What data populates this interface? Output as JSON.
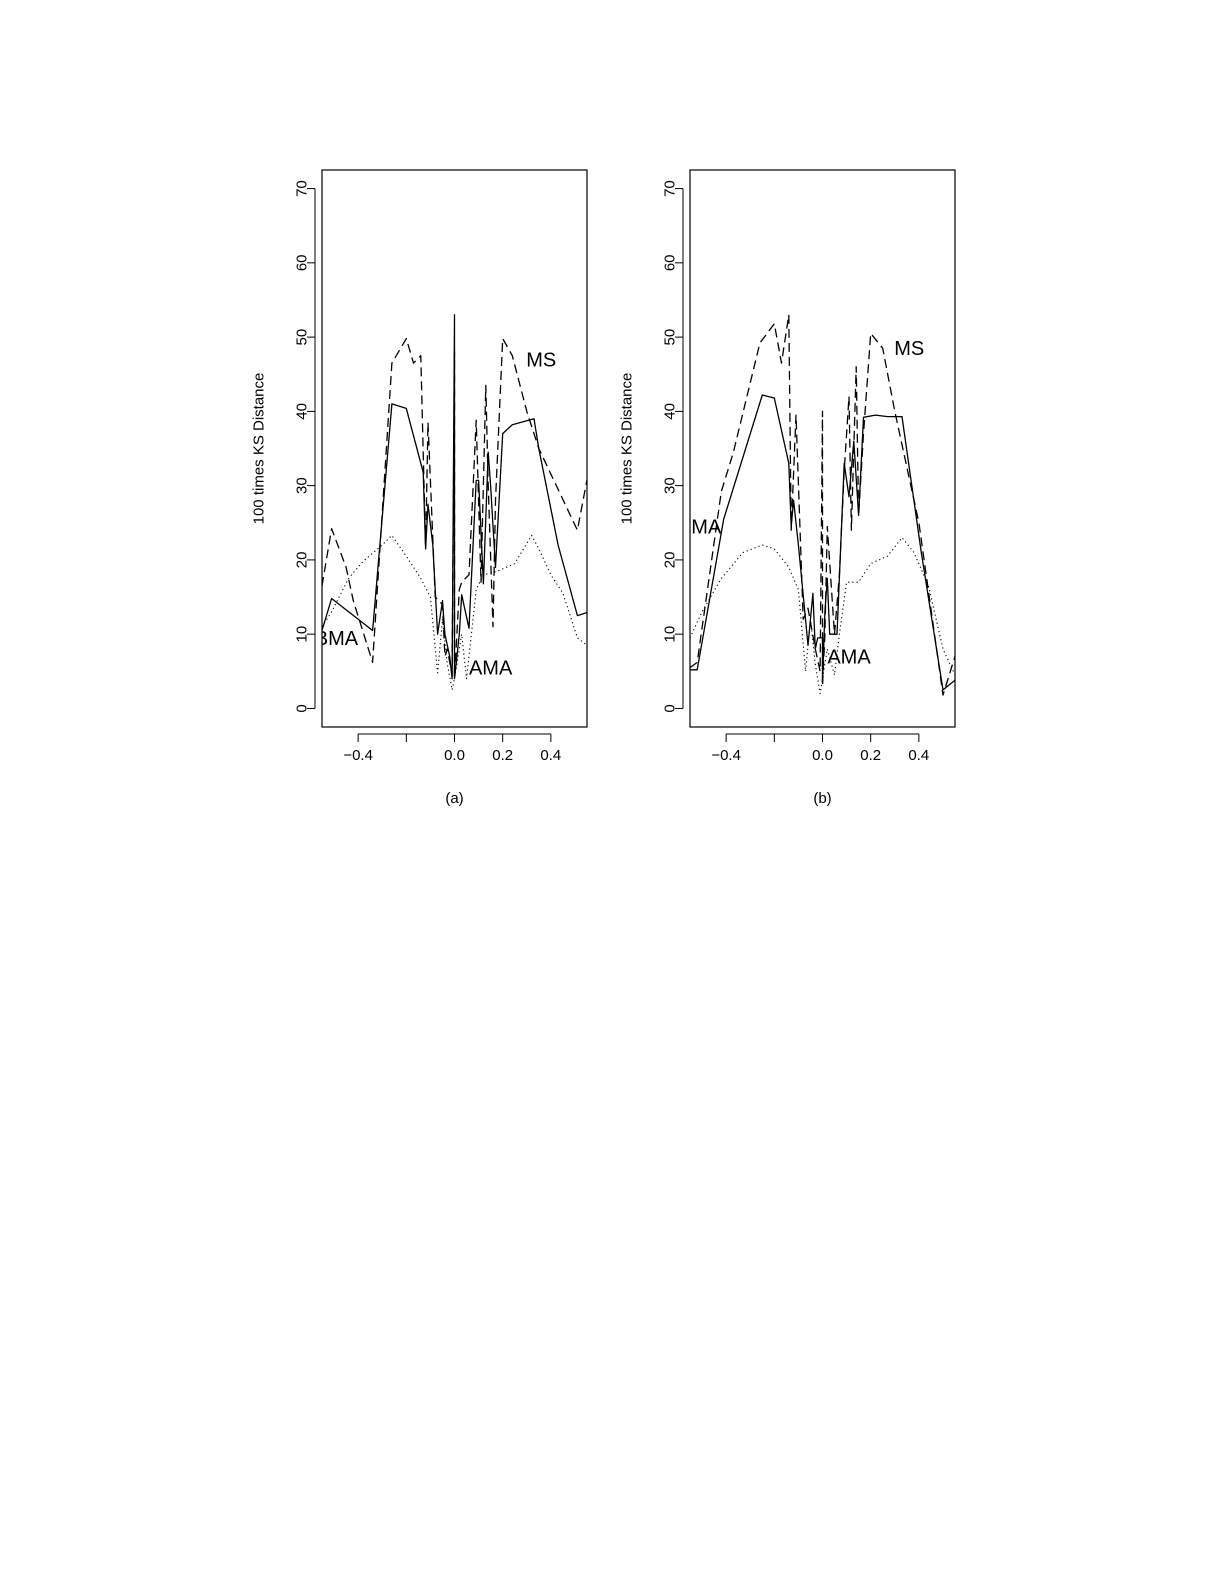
{
  "chart_data": [
    {
      "type": "line",
      "caption": "(a)",
      "ylabel": "100 times KS Distance",
      "xlabel": "",
      "xlim": [
        -0.55,
        0.55
      ],
      "ylim": [
        -2.5,
        72.5
      ],
      "x_ticks": [
        {
          "value": -0.4,
          "label": "−0.4"
        },
        {
          "value": -0.2,
          "label": ""
        },
        {
          "value": 0.0,
          "label": "0.0"
        },
        {
          "value": 0.2,
          "label": "0.2"
        },
        {
          "value": 0.4,
          "label": "0.4"
        }
      ],
      "y_ticks": [
        {
          "value": 0,
          "label": "0"
        },
        {
          "value": 10,
          "label": "10"
        },
        {
          "value": 20,
          "label": "20"
        },
        {
          "value": 30,
          "label": "30"
        },
        {
          "value": 40,
          "label": "40"
        },
        {
          "value": 50,
          "label": "50"
        },
        {
          "value": 60,
          "label": "60"
        },
        {
          "value": 70,
          "label": "70"
        }
      ],
      "annotations": [
        {
          "text": "MS",
          "x": 0.36,
          "y": 47
        },
        {
          "text": "BMA",
          "x": -0.49,
          "y": 9.5
        },
        {
          "text": "AMA",
          "x": 0.15,
          "y": 5.5
        }
      ],
      "series": [
        {
          "style": "solid",
          "points": [
            [
              -0.55,
              10.5
            ],
            [
              -0.51,
              14.8
            ],
            [
              -0.34,
              10.5
            ],
            [
              -0.26,
              41.0
            ],
            [
              -0.2,
              40.4
            ],
            [
              -0.13,
              31.8
            ],
            [
              -0.12,
              21.5
            ],
            [
              -0.11,
              27.5
            ],
            [
              -0.09,
              22
            ],
            [
              -0.07,
              10
            ],
            [
              -0.05,
              14.5
            ],
            [
              -0.04,
              10
            ],
            [
              -0.02,
              7
            ],
            [
              -0.01,
              4
            ],
            [
              0.0,
              53
            ],
            [
              0.0,
              4
            ],
            [
              0.02,
              10
            ],
            [
              0.03,
              15.3
            ],
            [
              0.06,
              10.8
            ],
            [
              0.09,
              30.7
            ],
            [
              0.1,
              30.7
            ],
            [
              0.12,
              16.8
            ],
            [
              0.14,
              34.5
            ],
            [
              0.15,
              30
            ],
            [
              0.17,
              19
            ],
            [
              0.2,
              37
            ],
            [
              0.24,
              38.2
            ],
            [
              0.33,
              39
            ],
            [
              0.35,
              35
            ],
            [
              0.43,
              22
            ],
            [
              0.51,
              12.5
            ],
            [
              0.55,
              12.9
            ]
          ]
        },
        {
          "style": "dashed",
          "points": [
            [
              -0.55,
              16.5
            ],
            [
              -0.51,
              24.2
            ],
            [
              -0.45,
              19
            ],
            [
              -0.42,
              14.5
            ],
            [
              -0.34,
              6.2
            ],
            [
              -0.26,
              46.5
            ],
            [
              -0.2,
              49.8
            ],
            [
              -0.17,
              46.5
            ],
            [
              -0.14,
              47.5
            ],
            [
              -0.12,
              21.5
            ],
            [
              -0.11,
              38.5
            ],
            [
              -0.08,
              15
            ],
            [
              -0.05,
              14
            ],
            [
              -0.04,
              7
            ],
            [
              -0.03,
              8
            ],
            [
              -0.01,
              4.5
            ],
            [
              0.0,
              48
            ],
            [
              0.0,
              4
            ],
            [
              0.02,
              16
            ],
            [
              0.03,
              17
            ],
            [
              0.06,
              18
            ],
            [
              0.09,
              38.8
            ],
            [
              0.11,
              17
            ],
            [
              0.13,
              43.5
            ],
            [
              0.14,
              30
            ],
            [
              0.16,
              11
            ],
            [
              0.17,
              28
            ],
            [
              0.2,
              49.8
            ],
            [
              0.24,
              47.5
            ],
            [
              0.3,
              40
            ],
            [
              0.35,
              35
            ],
            [
              0.51,
              24
            ],
            [
              0.55,
              30.8
            ]
          ]
        },
        {
          "style": "dotted",
          "points": [
            [
              -0.55,
              11
            ],
            [
              -0.51,
              13
            ],
            [
              -0.44,
              17.5
            ],
            [
              -0.38,
              19.8
            ],
            [
              -0.3,
              22
            ],
            [
              -0.26,
              23.3
            ],
            [
              -0.2,
              20.5
            ],
            [
              -0.14,
              17.5
            ],
            [
              -0.1,
              15
            ],
            [
              -0.07,
              4.8
            ],
            [
              -0.05,
              12
            ],
            [
              -0.03,
              6
            ],
            [
              -0.01,
              2.5
            ],
            [
              0.0,
              4
            ],
            [
              0.03,
              10
            ],
            [
              0.05,
              4
            ],
            [
              0.07,
              10
            ],
            [
              0.09,
              16
            ],
            [
              0.12,
              18
            ],
            [
              0.18,
              18.5
            ],
            [
              0.25,
              19.5
            ],
            [
              0.32,
              23.3
            ],
            [
              0.35,
              21.5
            ],
            [
              0.4,
              18
            ],
            [
              0.45,
              15.5
            ],
            [
              0.51,
              9.5
            ],
            [
              0.55,
              8.5
            ]
          ]
        }
      ]
    },
    {
      "type": "line",
      "caption": "(b)",
      "ylabel": "100 times KS Distance",
      "xlabel": "",
      "xlim": [
        -0.55,
        0.55
      ],
      "ylim": [
        -2.5,
        72.5
      ],
      "x_ticks": [
        {
          "value": -0.4,
          "label": "−0.4"
        },
        {
          "value": -0.2,
          "label": ""
        },
        {
          "value": 0.0,
          "label": "0.0"
        },
        {
          "value": 0.2,
          "label": "0.2"
        },
        {
          "value": 0.4,
          "label": "0.4"
        }
      ],
      "y_ticks": [
        {
          "value": 0,
          "label": "0"
        },
        {
          "value": 10,
          "label": "10"
        },
        {
          "value": 20,
          "label": "20"
        },
        {
          "value": 30,
          "label": "30"
        },
        {
          "value": 40,
          "label": "40"
        },
        {
          "value": 50,
          "label": "50"
        },
        {
          "value": 60,
          "label": "60"
        },
        {
          "value": 70,
          "label": "70"
        }
      ],
      "annotations": [
        {
          "text": "MS",
          "x": 0.36,
          "y": 48.5
        },
        {
          "text": "BMA",
          "x": -0.51,
          "y": 24.5
        },
        {
          "text": "AMA",
          "x": 0.11,
          "y": 7
        }
      ],
      "series": [
        {
          "style": "solid",
          "points": [
            [
              -0.55,
              5.2
            ],
            [
              -0.52,
              5.2
            ],
            [
              -0.41,
              25.5
            ],
            [
              -0.25,
              42.2
            ],
            [
              -0.2,
              41.8
            ],
            [
              -0.14,
              33
            ],
            [
              -0.13,
              24.5
            ],
            [
              -0.12,
              28
            ],
            [
              -0.1,
              22
            ],
            [
              -0.06,
              8.5
            ],
            [
              -0.04,
              15.5
            ],
            [
              -0.03,
              8
            ],
            [
              -0.02,
              9.5
            ],
            [
              0.0,
              9.5
            ],
            [
              0.0,
              3.5
            ],
            [
              0.01,
              13
            ],
            [
              0.02,
              17.5
            ],
            [
              0.03,
              10
            ],
            [
              0.06,
              10
            ],
            [
              0.09,
              33
            ],
            [
              0.11,
              28.5
            ],
            [
              0.13,
              36
            ],
            [
              0.15,
              26
            ],
            [
              0.17,
              39.2
            ],
            [
              0.22,
              39.5
            ],
            [
              0.27,
              39.3
            ],
            [
              0.33,
              39.3
            ],
            [
              0.41,
              21
            ],
            [
              0.5,
              2.5
            ],
            [
              0.55,
              3.8
            ]
          ]
        },
        {
          "style": "dashed",
          "points": [
            [
              -0.55,
              5.5
            ],
            [
              -0.52,
              6.2
            ],
            [
              -0.42,
              29.2
            ],
            [
              -0.37,
              34.5
            ],
            [
              -0.26,
              49.2
            ],
            [
              -0.2,
              51.8
            ],
            [
              -0.17,
              46.5
            ],
            [
              -0.14,
              53
            ],
            [
              -0.13,
              24
            ],
            [
              -0.11,
              39.5
            ],
            [
              -0.08,
              12
            ],
            [
              -0.06,
              13.5
            ],
            [
              -0.03,
              8
            ],
            [
              -0.01,
              5
            ],
            [
              0.0,
              40
            ],
            [
              0.0,
              3
            ],
            [
              0.01,
              10
            ],
            [
              0.02,
              24.5
            ],
            [
              0.05,
              10
            ],
            [
              0.07,
              18
            ],
            [
              0.09,
              32
            ],
            [
              0.11,
              42
            ],
            [
              0.12,
              24
            ],
            [
              0.14,
              46
            ],
            [
              0.15,
              26
            ],
            [
              0.17,
              37
            ],
            [
              0.2,
              50.5
            ],
            [
              0.25,
              48.5
            ],
            [
              0.3,
              40
            ],
            [
              0.4,
              25
            ],
            [
              0.5,
              1.8
            ],
            [
              0.55,
              7
            ]
          ]
        },
        {
          "style": "dotted",
          "points": [
            [
              -0.55,
              9.5
            ],
            [
              -0.5,
              13
            ],
            [
              -0.42,
              17.5
            ],
            [
              -0.33,
              21
            ],
            [
              -0.25,
              22
            ],
            [
              -0.2,
              21.5
            ],
            [
              -0.14,
              19
            ],
            [
              -0.1,
              16
            ],
            [
              -0.07,
              5
            ],
            [
              -0.05,
              12
            ],
            [
              -0.03,
              6
            ],
            [
              -0.01,
              2
            ],
            [
              0.0,
              4
            ],
            [
              0.02,
              8
            ],
            [
              0.05,
              4.5
            ],
            [
              0.07,
              10
            ],
            [
              0.1,
              17
            ],
            [
              0.15,
              17
            ],
            [
              0.2,
              19.5
            ],
            [
              0.27,
              20.5
            ],
            [
              0.33,
              23
            ],
            [
              0.38,
              21
            ],
            [
              0.44,
              16.5
            ],
            [
              0.5,
              8
            ],
            [
              0.55,
              4.5
            ]
          ]
        }
      ]
    }
  ]
}
